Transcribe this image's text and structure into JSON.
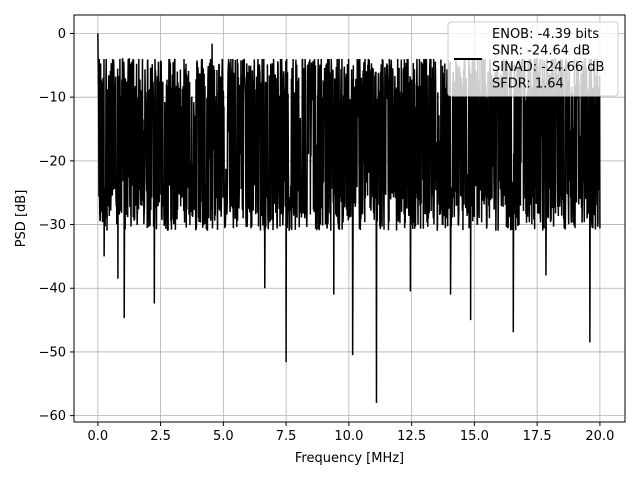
{
  "chart_data": {
    "type": "line",
    "title": "",
    "xlabel": "Frequency [MHz]",
    "ylabel": "PSD [dB]",
    "xlim": [
      -0.95,
      21.0
    ],
    "ylim": [
      -61.0,
      2.9
    ],
    "x_ticks": [
      0.0,
      2.5,
      5.0,
      7.5,
      10.0,
      12.5,
      15.0,
      17.5,
      20.0
    ],
    "x_tick_labels": [
      "0.0",
      "2.5",
      "5.0",
      "7.5",
      "10.0",
      "12.5",
      "15.0",
      "17.5",
      "20.0"
    ],
    "y_ticks": [
      0,
      -10,
      -20,
      -30,
      -40,
      -50,
      -60
    ],
    "y_tick_labels": [
      "0",
      "−10",
      "−20",
      "−30",
      "−40",
      "−50",
      "−60"
    ],
    "grid": true,
    "legend_position": "upper-right",
    "series": [
      {
        "label_lines": [
          "ENOB: -4.39 bits",
          "SNR: -24.64 dB",
          "SINAD: -24.66 dB",
          "SFDR: 1.64"
        ],
        "color": "#000000",
        "x_range": [
          0.0,
          20.0
        ],
        "noise_floor_db": -17,
        "start_db": 0.0,
        "upper_envelope_db": -7,
        "lower_envelope_db": -27,
        "notable_points": [
          {
            "x": 0.0,
            "y": 0.0
          },
          {
            "x": 0.25,
            "y": -35.0
          },
          {
            "x": 0.8,
            "y": -38.5
          },
          {
            "x": 1.05,
            "y": -44.7
          },
          {
            "x": 2.25,
            "y": -42.4
          },
          {
            "x": 4.55,
            "y": -1.6
          },
          {
            "x": 6.65,
            "y": -40.0
          },
          {
            "x": 7.5,
            "y": -51.6
          },
          {
            "x": 9.4,
            "y": -41.0
          },
          {
            "x": 10.15,
            "y": -50.5
          },
          {
            "x": 11.1,
            "y": -58.0
          },
          {
            "x": 12.45,
            "y": -40.5
          },
          {
            "x": 14.05,
            "y": -41.0
          },
          {
            "x": 14.85,
            "y": -45.0
          },
          {
            "x": 16.55,
            "y": -46.9
          },
          {
            "x": 17.85,
            "y": -38.0
          },
          {
            "x": 19.6,
            "y": -48.5
          }
        ]
      }
    ]
  }
}
